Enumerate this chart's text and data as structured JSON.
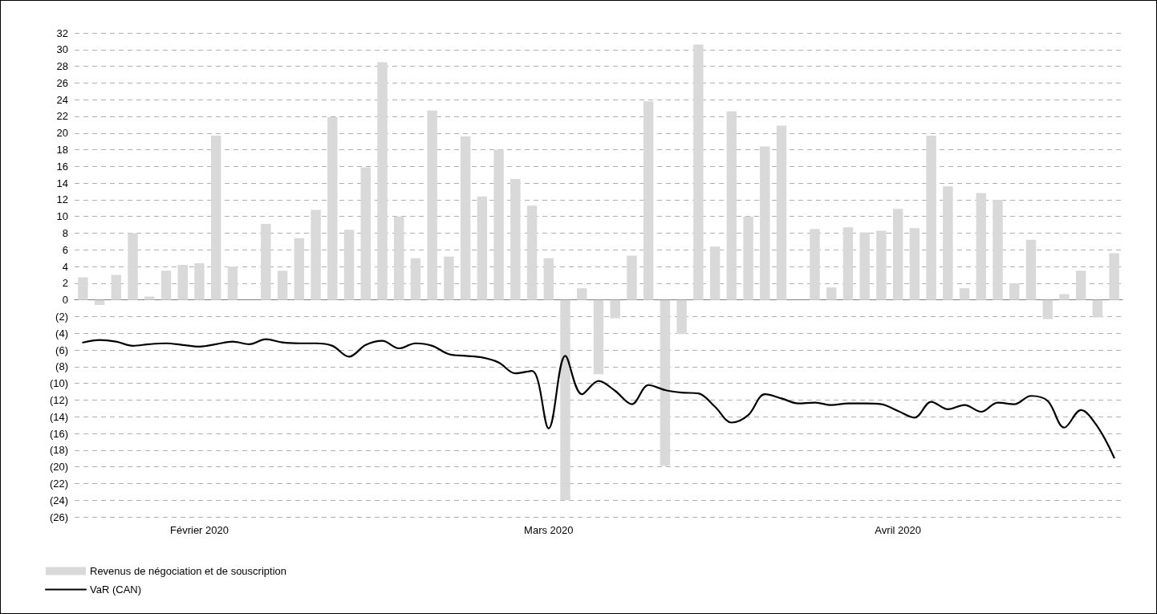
{
  "chart_data": {
    "type": "bar",
    "categories": [
      null,
      null,
      null,
      null,
      null,
      null,
      null,
      "Février 2020",
      null,
      null,
      null,
      null,
      null,
      null,
      null,
      null,
      null,
      null,
      null,
      null,
      null,
      null,
      null,
      null,
      null,
      null,
      null,
      null,
      "Mars 2020",
      null,
      null,
      null,
      null,
      null,
      null,
      null,
      null,
      null,
      null,
      null,
      null,
      null,
      null,
      null,
      null,
      null,
      null,
      null,
      null,
      "Avril 2020",
      null,
      null,
      null,
      null,
      null,
      null,
      null,
      null,
      null,
      null,
      null,
      null,
      null
    ],
    "series": [
      {
        "name": "Revenus de négociation et de souscription",
        "color": "#d9d9d9",
        "values": [
          2.7,
          -0.6,
          3.0,
          8.0,
          0.4,
          3.5,
          4.2,
          4.4,
          19.7,
          4.0,
          null,
          9.1,
          3.5,
          7.4,
          10.8,
          21.9,
          8.4,
          15.9,
          28.5,
          10.0,
          5.0,
          22.7,
          5.2,
          19.6,
          12.4,
          18.0,
          14.5,
          11.3,
          5.0,
          -24.0,
          1.4,
          -8.9,
          -2.2,
          5.3,
          23.8,
          -19.9,
          -4.1,
          30.6,
          6.4,
          22.6,
          10.0,
          18.4,
          20.9,
          null,
          8.5,
          1.5,
          8.7,
          8.1,
          8.3,
          10.9,
          8.6,
          19.7,
          13.6,
          1.4,
          12.8,
          12.0,
          2.0,
          7.2,
          -2.3,
          0.7,
          3.5,
          -2.1,
          5.6
        ]
      },
      {
        "name": "VaR (CAN)",
        "type": "line",
        "color": "#000000",
        "values": [
          -5.1,
          -4.8,
          -5.0,
          -5.5,
          -5.3,
          -5.2,
          -5.4,
          -5.6,
          -5.3,
          -5.0,
          -5.3,
          -4.7,
          -5.1,
          -5.2,
          -5.2,
          -5.5,
          -6.8,
          -5.4,
          -4.9,
          -5.8,
          -5.2,
          -5.5,
          -6.5,
          -6.7,
          -6.9,
          -7.5,
          -8.8,
          -8.5,
          -15.4,
          -6.7,
          -11.3,
          -9.7,
          -10.9,
          -12.5,
          -10.2,
          -10.8,
          -11.1,
          -11.2,
          -12.8,
          -14.7,
          -13.8,
          -11.3,
          -11.8,
          -12.4,
          -12.3,
          -12.6,
          -12.4,
          -12.4,
          -12.5,
          -13.3,
          -14.1,
          -12.2,
          -13.1,
          -12.6,
          -13.4,
          -12.3,
          -12.5,
          -11.5,
          -12.1,
          -15.3,
          -13.2,
          -15.2,
          -18.9
        ]
      }
    ],
    "ylim": [
      -26,
      32
    ],
    "yticks": [
      32,
      30,
      28,
      26,
      24,
      22,
      20,
      18,
      16,
      14,
      12,
      10,
      8,
      6,
      4,
      2,
      0,
      {
        "value": -2,
        "label": "(2)"
      },
      {
        "value": -4,
        "label": "(4)"
      },
      {
        "value": -6,
        "label": "(6)"
      },
      {
        "value": -8,
        "label": "(8)"
      },
      {
        "value": -10,
        "label": "(10)"
      },
      {
        "value": -12,
        "label": "(12)"
      },
      {
        "value": -14,
        "label": "(14)"
      },
      {
        "value": -16,
        "label": "(16)"
      },
      {
        "value": -18,
        "label": "(18)"
      },
      {
        "value": -20,
        "label": "(20)"
      },
      {
        "value": -22,
        "label": "(22)"
      },
      {
        "value": -24,
        "label": "(24)"
      },
      {
        "value": -26,
        "label": "(26)"
      }
    ],
    "grid": "y",
    "legend": "bottom left",
    "marker": "none",
    "line_style": "solid"
  }
}
